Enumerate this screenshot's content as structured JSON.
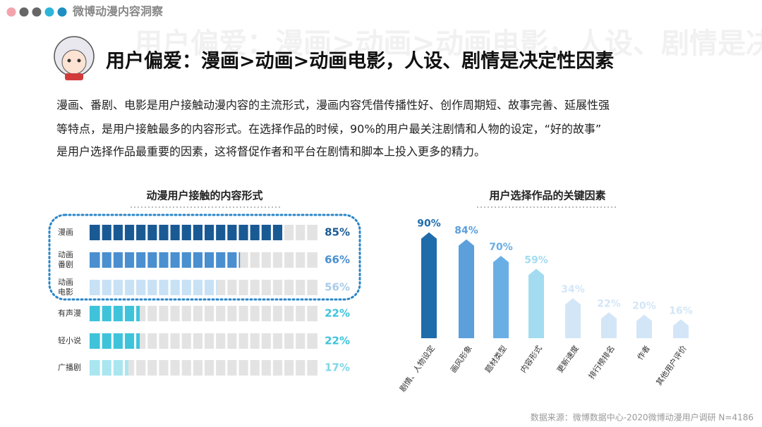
{
  "header": {
    "brand": "微博动漫内容洞察",
    "title": "用户偏爱：漫画>动画>动画电影，人设、剧情是决定性因素"
  },
  "paragraph": [
    "漫画、番剧、电影是用户接触动漫内容的主流形式，漫画内容凭借传播性好、创作周期短、故事完善、延展性强",
    "等特点，是用户接触最多的内容形式。在选择作品的时候，90%的用户最关注剧情和人物的设定，“好的故事”",
    "是用户选择作品最重要的因素，这将督促作者和平台在剧情和脚本上投入更多的精力。"
  ],
  "chart_data": [
    {
      "type": "bar",
      "orientation": "horizontal",
      "title": "动漫用户接触的内容形式",
      "categories": [
        "漫画",
        "动画\n番剧",
        "动画\n电影",
        "有声漫",
        "轻小说",
        "广播剧"
      ],
      "values": [
        85,
        66,
        56,
        22,
        22,
        17
      ],
      "value_labels": [
        "85%",
        "66%",
        "56%",
        "22%",
        "22%",
        "17%"
      ],
      "colors": [
        "#1a5a94",
        "#4a8fd0",
        "#c8e1f5",
        "#3fc3db",
        "#3fc3db",
        "#a9e6f0"
      ],
      "label_colors": [
        "#1a5a94",
        "#4a8fd0",
        "#a9cbe8",
        "#3fc3db",
        "#3fc3db",
        "#7fd6e6"
      ],
      "xlim": [
        0,
        100
      ]
    },
    {
      "type": "bar",
      "orientation": "vertical",
      "title": "用户选择作品的关键因素",
      "categories": [
        "剧情、人物设定",
        "画风形象",
        "题材类型",
        "内容形式",
        "更新速度",
        "排行榜排名",
        "作者",
        "其他用户评价"
      ],
      "values": [
        90,
        84,
        70,
        59,
        34,
        22,
        20,
        16
      ],
      "value_labels": [
        "90%",
        "84%",
        "70%",
        "59%",
        "34%",
        "22%",
        "20%",
        "16%"
      ],
      "colors": [
        "#1f6cab",
        "#5b9fdb",
        "#6aaee6",
        "#a3dcf0",
        "#d3e6f7",
        "#d3e6f7",
        "#d3e6f7",
        "#d3e6f7"
      ],
      "ylim": [
        0,
        100
      ]
    }
  ],
  "source": "数据来源：微博数据中心-2020微博动漫用户调研 N=4186"
}
